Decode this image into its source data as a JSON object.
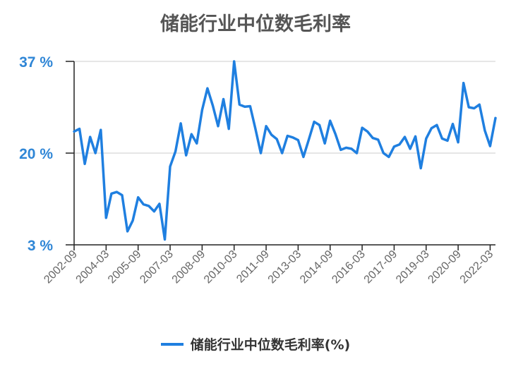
{
  "chart_data": {
    "type": "line",
    "title": "储能行业中位数毛利率",
    "xlabel": "",
    "ylabel": "",
    "ylim": [
      3,
      37
    ],
    "yticks": [
      "37 %",
      "20 %",
      "3 %"
    ],
    "ytick_values": [
      37,
      20,
      3
    ],
    "xtick_labels": [
      "2002-09",
      "2004-03",
      "2005-09",
      "2007-03",
      "2008-09",
      "2010-03",
      "2011-09",
      "2013-03",
      "2014-09",
      "2016-03",
      "2017-09",
      "2019-03",
      "2020-09",
      "2022-03"
    ],
    "legend": "bottom-center",
    "grid": "horizontal",
    "colors": {
      "line": "#1f7fe0",
      "axis": "#222222",
      "grid": "#dddddd"
    },
    "series": [
      {
        "name": "储能行业中位数毛利率(%)",
        "values": [
          24.0,
          24.5,
          18.0,
          23.0,
          20.0,
          24.3,
          8.0,
          12.5,
          12.8,
          12.2,
          5.5,
          7.5,
          11.8,
          10.5,
          10.2,
          9.2,
          10.6,
          4.0,
          17.5,
          20.3,
          25.5,
          19.6,
          23.5,
          21.8,
          28.0,
          32.0,
          28.8,
          25.0,
          30.0,
          24.5,
          37.0,
          29.0,
          28.6,
          28.7,
          24.5,
          20.0,
          25.0,
          23.4,
          22.6,
          20.0,
          23.2,
          22.9,
          22.4,
          19.3,
          22.5,
          25.8,
          25.2,
          21.8,
          26.0,
          23.5,
          20.6,
          21.0,
          20.8,
          20.0,
          24.7,
          24.0,
          22.8,
          22.5,
          20.0,
          19.3,
          21.2,
          21.6,
          23.0,
          20.8,
          23.1,
          17.2,
          22.7,
          24.6,
          25.2,
          22.7,
          22.3,
          25.4,
          22.0,
          33.0,
          28.5,
          28.3,
          29.0,
          24.2,
          21.3,
          26.5
        ]
      }
    ]
  }
}
